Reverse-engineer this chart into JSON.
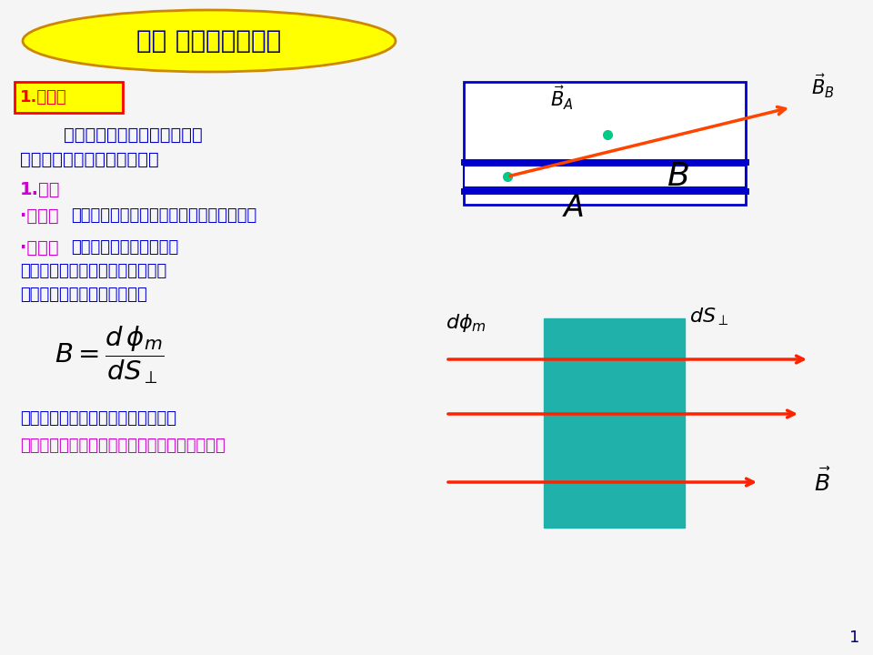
{
  "bg_color": "#f5f5f5",
  "title_text": "一、 磁场的高斯定理",
  "title_bg": "#ffff00",
  "title_border": "#cc8800",
  "title_color": "#000080",
  "subtitle1": "1.磁力线",
  "subtitle1_bg": "#ffff00",
  "subtitle1_color": "#ff0000",
  "body_color": "#0000cc",
  "red_color": "#ff2200",
  "magenta_color": "#cc00cc",
  "black_color": "#000000",
  "teal_color": "#20b2aa",
  "line1": "为形象的描绘磁场分布的而引",
  "line2": "入的一组有方向的空间曲线。",
  "regulation": "1.规定",
  "direction_label": "·方向：",
  "direction_text": "磁力线上某点的切线方向为该点磁场方向。",
  "magnitude_label": "·大小：",
  "magnitude_text1": "通过磁场中某点垂直于磁",
  "magnitude_text2": "感应强度的单位面积的磁力线根数",
  "magnitude_text3": "等于该点磁感应强度的大小。",
  "footer1": "磁感应强度大小为磁力线的面密度。",
  "footer2": "可用磁力线的疏密程度表示磁感应强度的大小。",
  "page_num": "1"
}
